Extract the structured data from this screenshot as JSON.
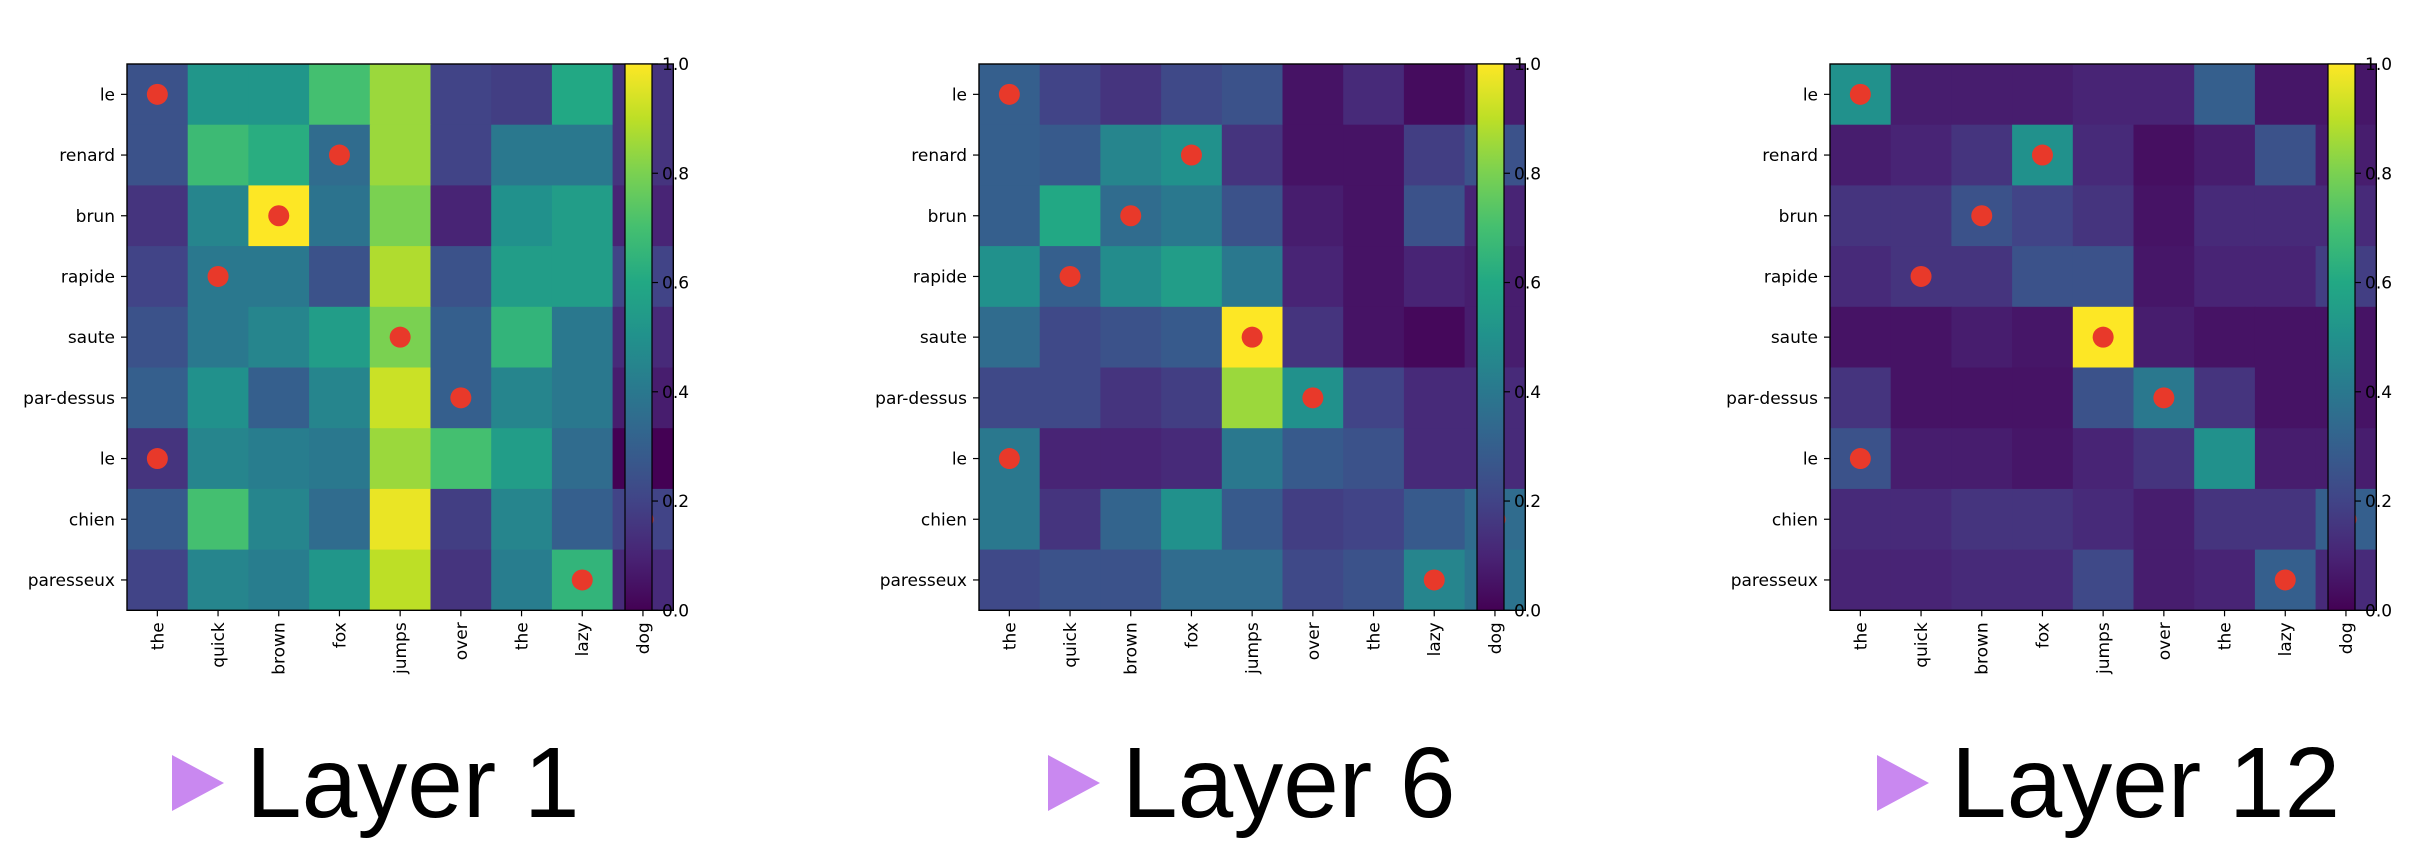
{
  "colorscale": {
    "name": "viridis",
    "min": 0,
    "max": 1,
    "ticks": [
      0.0,
      0.2,
      0.4,
      0.6,
      0.8,
      1.0
    ],
    "tick_labels": [
      "0.0",
      "0.2",
      "0.4",
      "0.6",
      "0.8",
      "1.0"
    ],
    "marker_color": "#e8392a",
    "caption_marker_color": "#c988f0"
  },
  "captions": [
    "Layer 1",
    "Layer 6",
    "Layer 12"
  ],
  "chart_data": [
    {
      "type": "heatmap",
      "title": "",
      "caption": "Layer 1",
      "x_labels": [
        "the",
        "quick",
        "brown",
        "fox",
        "jumps",
        "over",
        "the",
        "lazy",
        "dog"
      ],
      "y_labels": [
        "le",
        "renard",
        "brun",
        "rapide",
        "saute",
        "par-dessus",
        "le",
        "chien",
        "paresseux"
      ],
      "values": [
        [
          0.25,
          0.52,
          0.52,
          0.7,
          0.85,
          0.2,
          0.18,
          0.6,
          0.15
        ],
        [
          0.25,
          0.68,
          0.62,
          0.35,
          0.85,
          0.2,
          0.4,
          0.4,
          0.15
        ],
        [
          0.15,
          0.45,
          1.0,
          0.38,
          0.8,
          0.1,
          0.5,
          0.55,
          0.1
        ],
        [
          0.2,
          0.4,
          0.4,
          0.25,
          0.88,
          0.25,
          0.55,
          0.55,
          0.2
        ],
        [
          0.25,
          0.4,
          0.45,
          0.55,
          0.8,
          0.3,
          0.65,
          0.4,
          0.12
        ],
        [
          0.3,
          0.5,
          0.3,
          0.45,
          0.92,
          0.3,
          0.45,
          0.4,
          0.08
        ],
        [
          0.15,
          0.45,
          0.42,
          0.4,
          0.85,
          0.7,
          0.55,
          0.35,
          0.0
        ],
        [
          0.28,
          0.7,
          0.45,
          0.35,
          0.97,
          0.18,
          0.45,
          0.3,
          0.2
        ],
        [
          0.2,
          0.45,
          0.42,
          0.52,
          0.9,
          0.15,
          0.42,
          0.65,
          0.12
        ]
      ],
      "markers": [
        {
          "x": "the",
          "y": "le"
        },
        {
          "x": "fox",
          "y": "renard"
        },
        {
          "x": "brown",
          "y": "brun"
        },
        {
          "x": "quick",
          "y": "rapide"
        },
        {
          "x": "jumps",
          "y": "saute"
        },
        {
          "x": "over",
          "y": "par-dessus"
        },
        {
          "x": "the",
          "y": "le"
        },
        {
          "x": "dog",
          "y": "chien"
        },
        {
          "x": "lazy",
          "y": "paresseux"
        }
      ]
    },
    {
      "type": "heatmap",
      "title": "",
      "caption": "Layer 6",
      "x_labels": [
        "the",
        "quick",
        "brown",
        "fox",
        "jumps",
        "over",
        "the",
        "lazy",
        "dog"
      ],
      "y_labels": [
        "le",
        "renard",
        "brun",
        "rapide",
        "saute",
        "par-dessus",
        "le",
        "chien",
        "paresseux"
      ],
      "values": [
        [
          0.3,
          0.2,
          0.15,
          0.22,
          0.25,
          0.05,
          0.12,
          0.03,
          0.08
        ],
        [
          0.3,
          0.28,
          0.45,
          0.5,
          0.15,
          0.05,
          0.05,
          0.18,
          0.25
        ],
        [
          0.3,
          0.6,
          0.35,
          0.4,
          0.25,
          0.08,
          0.05,
          0.25,
          0.1
        ],
        [
          0.5,
          0.3,
          0.48,
          0.55,
          0.4,
          0.1,
          0.05,
          0.1,
          0.08
        ],
        [
          0.35,
          0.22,
          0.25,
          0.28,
          1.0,
          0.15,
          0.05,
          0.02,
          0.08
        ],
        [
          0.22,
          0.22,
          0.15,
          0.18,
          0.85,
          0.5,
          0.2,
          0.12,
          0.12
        ],
        [
          0.4,
          0.1,
          0.1,
          0.12,
          0.4,
          0.28,
          0.25,
          0.12,
          0.12
        ],
        [
          0.4,
          0.15,
          0.32,
          0.5,
          0.28,
          0.18,
          0.2,
          0.28,
          0.35
        ],
        [
          0.22,
          0.25,
          0.25,
          0.35,
          0.35,
          0.22,
          0.25,
          0.45,
          0.38
        ]
      ],
      "markers": [
        {
          "x": "the",
          "y": "le"
        },
        {
          "x": "fox",
          "y": "renard"
        },
        {
          "x": "brown",
          "y": "brun"
        },
        {
          "x": "quick",
          "y": "rapide"
        },
        {
          "x": "jumps",
          "y": "saute"
        },
        {
          "x": "over",
          "y": "par-dessus"
        },
        {
          "x": "the",
          "y": "le"
        },
        {
          "x": "dog",
          "y": "chien"
        },
        {
          "x": "lazy",
          "y": "paresseux"
        }
      ]
    },
    {
      "type": "heatmap",
      "title": "",
      "caption": "Layer 12",
      "x_labels": [
        "the",
        "quick",
        "brown",
        "fox",
        "jumps",
        "over",
        "the",
        "lazy",
        "dog"
      ],
      "y_labels": [
        "le",
        "renard",
        "brun",
        "rapide",
        "saute",
        "par-dessus",
        "le",
        "chien",
        "paresseux"
      ],
      "values": [
        [
          0.5,
          0.08,
          0.08,
          0.08,
          0.1,
          0.1,
          0.3,
          0.06,
          0.06
        ],
        [
          0.08,
          0.1,
          0.15,
          0.5,
          0.12,
          0.04,
          0.08,
          0.25,
          0.08
        ],
        [
          0.15,
          0.15,
          0.25,
          0.2,
          0.15,
          0.05,
          0.12,
          0.12,
          0.12
        ],
        [
          0.12,
          0.15,
          0.15,
          0.25,
          0.25,
          0.06,
          0.1,
          0.1,
          0.18
        ],
        [
          0.05,
          0.05,
          0.08,
          0.06,
          1.0,
          0.08,
          0.05,
          0.05,
          0.05
        ],
        [
          0.15,
          0.05,
          0.05,
          0.05,
          0.25,
          0.4,
          0.15,
          0.05,
          0.05
        ],
        [
          0.25,
          0.08,
          0.08,
          0.06,
          0.1,
          0.15,
          0.5,
          0.08,
          0.08
        ],
        [
          0.12,
          0.12,
          0.15,
          0.15,
          0.12,
          0.08,
          0.15,
          0.15,
          0.3
        ],
        [
          0.1,
          0.1,
          0.12,
          0.12,
          0.22,
          0.08,
          0.1,
          0.3,
          0.12
        ]
      ],
      "markers": [
        {
          "x": "the",
          "y": "le"
        },
        {
          "x": "fox",
          "y": "renard"
        },
        {
          "x": "brown",
          "y": "brun"
        },
        {
          "x": "quick",
          "y": "rapide"
        },
        {
          "x": "jumps",
          "y": "saute"
        },
        {
          "x": "over",
          "y": "par-dessus"
        },
        {
          "x": "the",
          "y": "le"
        },
        {
          "x": "dog",
          "y": "chien"
        },
        {
          "x": "lazy",
          "y": "paresseux"
        }
      ]
    }
  ]
}
